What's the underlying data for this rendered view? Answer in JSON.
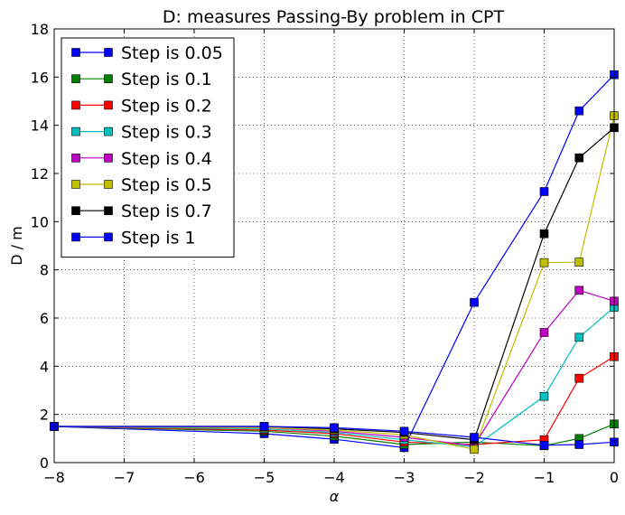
{
  "chart_data": {
    "type": "line",
    "title": "D: measures Passing-By problem in CPT",
    "xlabel": "α",
    "ylabel": "D / m",
    "xlim": [
      -8,
      0
    ],
    "ylim": [
      0,
      18
    ],
    "xticks": [
      -8,
      -7,
      -6,
      -5,
      -4,
      -3,
      -2,
      -1,
      0
    ],
    "yticks": [
      0,
      2,
      4,
      6,
      8,
      10,
      12,
      14,
      16,
      18
    ],
    "grid": true,
    "legend_position": "upper-left",
    "x": [
      -8,
      -5,
      -4,
      -3,
      -2,
      -1,
      -0.5,
      0
    ],
    "series": [
      {
        "name": "Step is 0.05",
        "color": "#0000ff",
        "values": [
          1.5,
          1.2,
          0.97,
          0.62,
          6.65,
          11.25,
          14.6,
          16.1
        ]
      },
      {
        "name": "Step is 0.1",
        "color": "#008000",
        "values": [
          1.5,
          1.3,
          1.1,
          0.75,
          0.85,
          0.7,
          1.0,
          1.6
        ]
      },
      {
        "name": "Step is 0.2",
        "color": "#ff0000",
        "values": [
          1.5,
          1.35,
          1.2,
          0.85,
          0.75,
          0.95,
          3.5,
          4.4
        ]
      },
      {
        "name": "Step is 0.3",
        "color": "#00bfbf",
        "values": [
          1.5,
          1.4,
          1.25,
          0.95,
          0.65,
          2.75,
          5.2,
          6.45
        ]
      },
      {
        "name": "Step is 0.4",
        "color": "#bf00bf",
        "values": [
          1.5,
          1.45,
          1.3,
          1.05,
          0.7,
          5.4,
          7.15,
          6.7
        ]
      },
      {
        "name": "Step is 0.5",
        "color": "#bfbf00",
        "values": [
          1.5,
          1.45,
          1.35,
          1.15,
          0.55,
          8.3,
          8.32,
          14.4
        ]
      },
      {
        "name": "Step is 0.7",
        "color": "#000000",
        "values": [
          1.5,
          1.5,
          1.4,
          1.25,
          0.95,
          9.5,
          12.65,
          13.9
        ]
      },
      {
        "name": "Step is 1",
        "color": "#0000ff",
        "values": [
          1.5,
          1.5,
          1.45,
          1.3,
          1.05,
          0.72,
          0.75,
          0.85
        ]
      }
    ]
  }
}
